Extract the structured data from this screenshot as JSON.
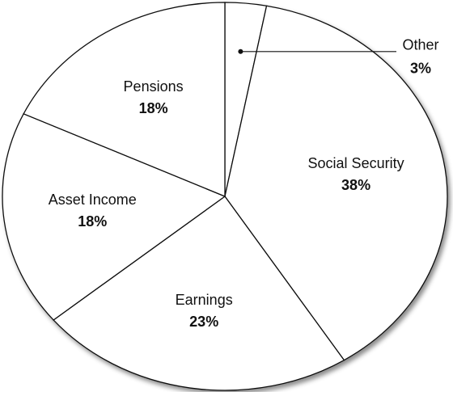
{
  "chart_data": {
    "type": "pie",
    "categories": [
      "Other",
      "Social Security",
      "Earnings",
      "Asset Income",
      "Pensions"
    ],
    "values": [
      3,
      38,
      23,
      18,
      18
    ],
    "value_labels": [
      "3%",
      "38%",
      "23%",
      "18%",
      "18%"
    ],
    "color": "#ffffff"
  }
}
